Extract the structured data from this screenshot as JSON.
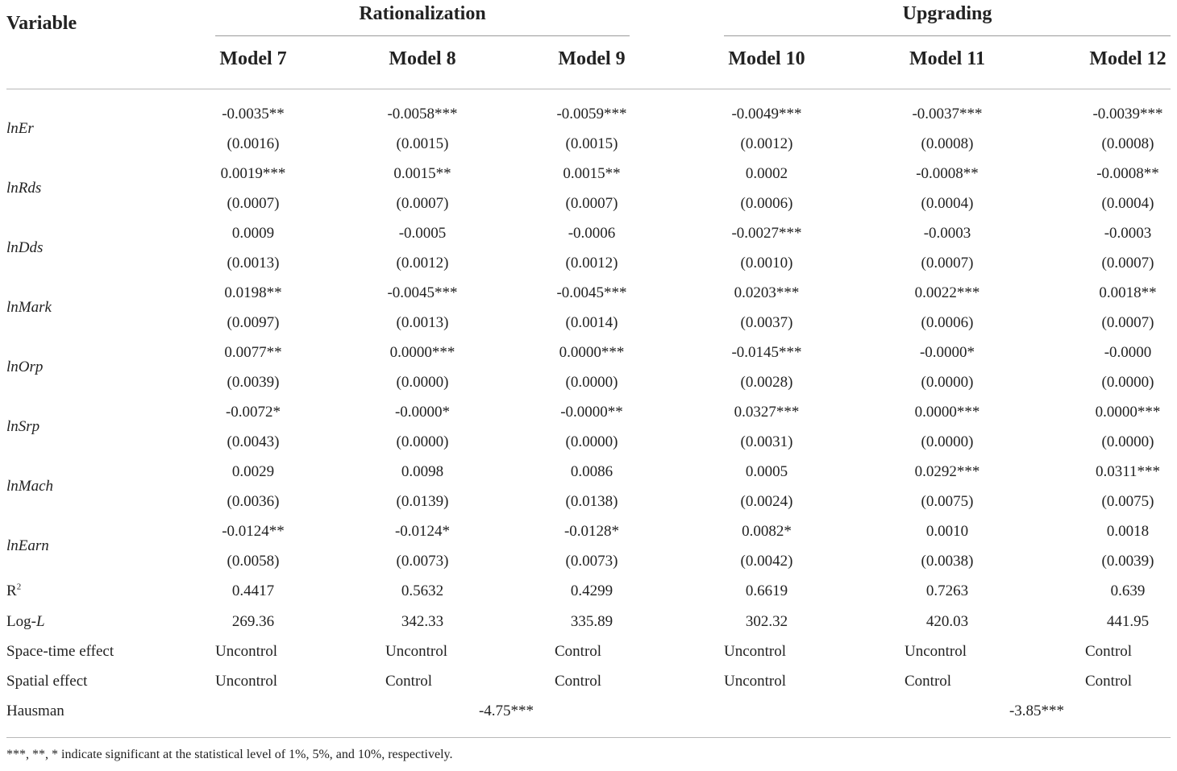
{
  "header": {
    "variable_label": "Variable",
    "group_rationalization": "Rationalization",
    "group_upgrading": "Upgrading",
    "models": [
      "Model 7",
      "Model 8",
      "Model 9",
      "Model 10",
      "Model 11",
      "Model 12"
    ]
  },
  "rows": [
    {
      "variable": "lnEr",
      "coef": [
        "-0.0035**",
        "-0.0058***",
        "-0.0059***",
        "-0.0049***",
        "-0.0037***",
        "-0.0039***"
      ],
      "se": [
        "(0.0016)",
        "(0.0015)",
        "(0.0015)",
        "(0.0012)",
        "(0.0008)",
        "(0.0008)"
      ]
    },
    {
      "variable": "lnRds",
      "coef": [
        "0.0019***",
        "0.0015**",
        "0.0015**",
        "0.0002",
        "-0.0008**",
        "-0.0008**"
      ],
      "se": [
        "(0.0007)",
        "(0.0007)",
        "(0.0007)",
        "(0.0006)",
        "(0.0004)",
        "(0.0004)"
      ]
    },
    {
      "variable": "lnDds",
      "coef": [
        "0.0009",
        "-0.0005",
        "-0.0006",
        "-0.0027***",
        "-0.0003",
        "-0.0003"
      ],
      "se": [
        "(0.0013)",
        "(0.0012)",
        "(0.0012)",
        "(0.0010)",
        "(0.0007)",
        "(0.0007)"
      ]
    },
    {
      "variable": "lnMark",
      "coef": [
        "0.0198**",
        "-0.0045***",
        "-0.0045***",
        "0.0203***",
        "0.0022***",
        "0.0018**"
      ],
      "se": [
        "(0.0097)",
        "(0.0013)",
        "(0.0014)",
        "(0.0037)",
        "(0.0006)",
        "(0.0007)"
      ]
    },
    {
      "variable": "lnOrp",
      "coef": [
        "0.0077**",
        "0.0000***",
        "0.0000***",
        "-0.0145***",
        "-0.0000*",
        "-0.0000"
      ],
      "se": [
        "(0.0039)",
        "(0.0000)",
        "(0.0000)",
        "(0.0028)",
        "(0.0000)",
        "(0.0000)"
      ]
    },
    {
      "variable": "lnSrp",
      "coef": [
        "-0.0072*",
        "-0.0000*",
        "-0.0000**",
        "0.0327***",
        "0.0000***",
        "0.0000***"
      ],
      "se": [
        "(0.0043)",
        "(0.0000)",
        "(0.0000)",
        "(0.0031)",
        "(0.0000)",
        "(0.0000)"
      ]
    },
    {
      "variable": "lnMach",
      "coef": [
        "0.0029",
        "0.0098",
        "0.0086",
        "0.0005",
        "0.0292***",
        "0.0311***"
      ],
      "se": [
        "(0.0036)",
        "(0.0139)",
        "(0.0138)",
        "(0.0024)",
        "(0.0075)",
        "(0.0075)"
      ]
    },
    {
      "variable": "lnEarn",
      "coef": [
        "-0.0124**",
        "-0.0124*",
        "-0.0128*",
        "0.0082*",
        "0.0010",
        "0.0018"
      ],
      "se": [
        "(0.0058)",
        "(0.0073)",
        "(0.0073)",
        "(0.0042)",
        "(0.0038)",
        "(0.0039)"
      ]
    }
  ],
  "r2": {
    "label": "R",
    "sup": "2",
    "values": [
      "0.4417",
      "0.5632",
      "0.4299",
      "0.6619",
      "0.7263",
      "0.639"
    ]
  },
  "logl": {
    "label_prefix": "Log-",
    "label_italic": "L",
    "values": [
      "269.36",
      "342.33",
      "335.89",
      "302.32",
      "420.03",
      "441.95"
    ]
  },
  "space_time": {
    "label": "Space-time effect",
    "values": [
      "Uncontrol",
      "Uncontrol",
      "Control",
      "Uncontrol",
      "Uncontrol",
      "Control"
    ]
  },
  "spatial": {
    "label": "Spatial effect",
    "values": [
      "Uncontrol",
      "Control",
      "Control",
      "Uncontrol",
      "Control",
      "Control"
    ]
  },
  "hausman": {
    "label": "Hausman",
    "rationalization": "-4.75***",
    "upgrading": "-3.85***"
  },
  "footnote": "***, **, * indicate significant at the statistical level of 1%, 5%, and 10%, respectively."
}
